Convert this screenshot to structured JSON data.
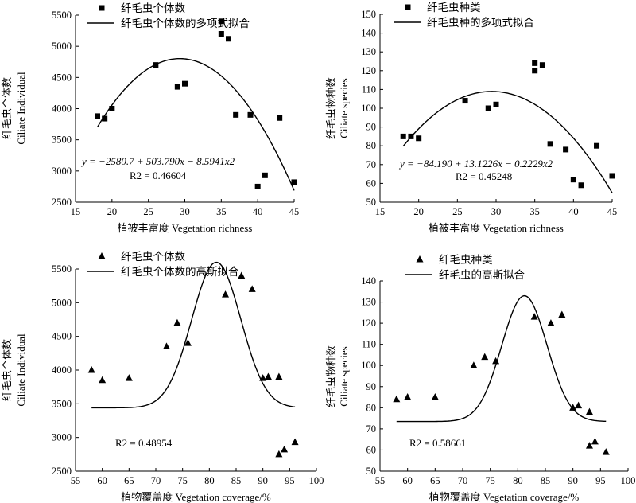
{
  "chart_data": [
    {
      "type": "scatter",
      "legend": [
        "纤毛虫个体数",
        "纤毛虫个体数的多项式拟合"
      ],
      "xlabel": "植被丰富度 Vegetation richness",
      "ylabel_cn": "纤毛虫个体数",
      "ylabel_en": "Ciliate Individual",
      "xlim": [
        15,
        45
      ],
      "ylim": [
        2500,
        5500
      ],
      "xticks": [
        15,
        20,
        25,
        30,
        35,
        40,
        45
      ],
      "yticks": [
        2500,
        3000,
        3500,
        4000,
        4500,
        5000,
        5500
      ],
      "marker": "square",
      "points": [
        [
          18,
          3880
        ],
        [
          19,
          3840
        ],
        [
          20,
          4000
        ],
        [
          26,
          4700
        ],
        [
          29,
          4350
        ],
        [
          30,
          4400
        ],
        [
          35,
          5400
        ],
        [
          35,
          5200
        ],
        [
          36,
          5120
        ],
        [
          37,
          3900
        ],
        [
          39,
          3900
        ],
        [
          40,
          2750
        ],
        [
          41,
          2930
        ],
        [
          43,
          3850
        ],
        [
          45,
          2820
        ]
      ],
      "fit": {
        "kind": "poly2",
        "coef": [
          -2580.7,
          503.79,
          -8.5941
        ],
        "xrange": [
          18,
          45
        ]
      },
      "equation": "y = −2580.7 + 503.790x − 8.5941x2",
      "r2": "R2 = 0.46604"
    },
    {
      "type": "scatter",
      "legend": [
        "纤毛虫种类",
        "纤毛虫种的多项式拟合"
      ],
      "xlabel": "植被丰富度 Vegetation richness",
      "ylabel_cn": "纤毛虫物种数",
      "ylabel_en": "Ciliate species",
      "xlim": [
        15,
        45
      ],
      "ylim": [
        50,
        150
      ],
      "xticks": [
        15,
        20,
        25,
        30,
        35,
        40,
        45
      ],
      "yticks": [
        50,
        60,
        70,
        80,
        90,
        100,
        110,
        120,
        130,
        140,
        150
      ],
      "marker": "square",
      "points": [
        [
          18,
          85
        ],
        [
          19,
          85
        ],
        [
          20,
          84
        ],
        [
          26,
          104
        ],
        [
          29,
          100
        ],
        [
          30,
          102
        ],
        [
          35,
          124
        ],
        [
          35,
          120
        ],
        [
          36,
          123
        ],
        [
          37,
          81
        ],
        [
          39,
          78
        ],
        [
          40,
          62
        ],
        [
          41,
          59
        ],
        [
          43,
          80
        ],
        [
          45,
          64
        ]
      ],
      "fit": {
        "kind": "poly2",
        "coef": [
          -84.19,
          13.1226,
          -0.2229
        ],
        "xrange": [
          18,
          45
        ]
      },
      "equation": "y = −84.190 + 13.1226x − 0.2229x2",
      "r2": "R2 = 0.45248"
    },
    {
      "type": "scatter",
      "legend": [
        "纤毛虫个体数",
        "纤毛虫个体数的高斯拟合"
      ],
      "xlabel": "植物覆盖度 Vegetation coverage/%",
      "ylabel_cn": "纤毛虫个体数",
      "ylabel_en": "Ciliate Individual",
      "xlim": [
        55,
        100
      ],
      "ylim": [
        2500,
        5500
      ],
      "xticks": [
        55,
        60,
        65,
        70,
        75,
        80,
        85,
        90,
        95,
        100
      ],
      "yticks": [
        2500,
        3000,
        3500,
        4000,
        4500,
        5000,
        5500
      ],
      "marker": "triangle",
      "points": [
        [
          58,
          4000
        ],
        [
          60,
          3850
        ],
        [
          65,
          3880
        ],
        [
          72,
          4350
        ],
        [
          74,
          4700
        ],
        [
          76,
          4400
        ],
        [
          83,
          5120
        ],
        [
          86,
          5400
        ],
        [
          88,
          5200
        ],
        [
          90,
          3880
        ],
        [
          91,
          3900
        ],
        [
          93,
          3900
        ],
        [
          93,
          2750
        ],
        [
          94,
          2820
        ],
        [
          96,
          2930
        ]
      ],
      "fit": {
        "kind": "gauss",
        "y0": 3440,
        "A": 2160,
        "xc": 81.3,
        "w": 4.6,
        "xrange": [
          58,
          96
        ]
      },
      "r2": "R2 = 0.48954"
    },
    {
      "type": "scatter",
      "legend": [
        "纤毛虫种类",
        "纤毛虫的高斯拟合"
      ],
      "xlabel": "植物覆盖度 Vegetation coverage/%",
      "ylabel_cn": "纤毛虫物种数",
      "ylabel_en": "Ciliate species",
      "xlim": [
        55,
        100
      ],
      "ylim": [
        50,
        140
      ],
      "xticks": [
        55,
        60,
        65,
        70,
        75,
        80,
        85,
        90,
        95,
        100
      ],
      "yticks": [
        50,
        60,
        70,
        80,
        90,
        100,
        110,
        120,
        130,
        140
      ],
      "marker": "triangle",
      "points": [
        [
          58,
          84
        ],
        [
          60,
          85
        ],
        [
          65,
          85
        ],
        [
          72,
          100
        ],
        [
          74,
          104
        ],
        [
          76,
          102
        ],
        [
          83,
          123
        ],
        [
          86,
          120
        ],
        [
          88,
          124
        ],
        [
          90,
          80
        ],
        [
          91,
          81
        ],
        [
          93,
          78
        ],
        [
          93,
          62
        ],
        [
          94,
          64
        ],
        [
          96,
          59
        ]
      ],
      "fit": {
        "kind": "gauss",
        "y0": 73.5,
        "A": 59.5,
        "xc": 81.2,
        "w": 4.1,
        "xrange": [
          58,
          96
        ]
      },
      "r2": "R2 = 0.58661"
    }
  ]
}
